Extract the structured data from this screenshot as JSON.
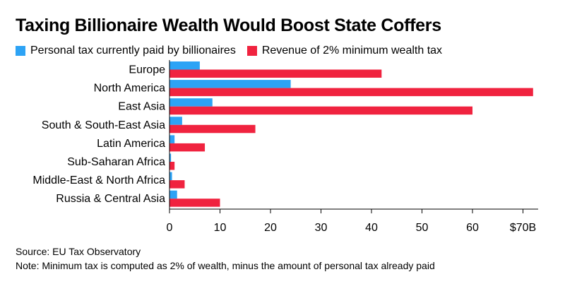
{
  "chart_data": {
    "type": "bar",
    "orientation": "horizontal",
    "title": "Taxing Billionaire Wealth Would Boost State Coffers",
    "categories": [
      "Europe",
      "North America",
      "East Asia",
      "South & South-East Asia",
      "Latin America",
      "Sub-Saharan Africa",
      "Middle-East & North Africa",
      "Russia & Central Asia"
    ],
    "series": [
      {
        "name": "Personal tax currently paid by billionaires",
        "color": "#2da3f5",
        "values": [
          6,
          24,
          8.5,
          2.5,
          1,
          0.3,
          0.5,
          1.5
        ]
      },
      {
        "name": "Revenue of 2% minimum wealth tax",
        "color": "#f0233f",
        "values": [
          42,
          72,
          60,
          17,
          7,
          1,
          3,
          10
        ]
      }
    ],
    "xlim": [
      0,
      73
    ],
    "x_ticks": [
      0,
      10,
      20,
      30,
      40,
      50,
      60,
      70
    ],
    "x_tick_labels": [
      "0",
      "10",
      "20",
      "30",
      "40",
      "50",
      "60",
      "$70B"
    ],
    "xlabel": "",
    "ylabel": "",
    "grid": false,
    "legend": "top-left"
  },
  "footer": {
    "source": "Source: EU Tax Observatory",
    "note": "Note: Minimum tax is computed as 2% of wealth, minus the amount of personal tax already paid"
  }
}
